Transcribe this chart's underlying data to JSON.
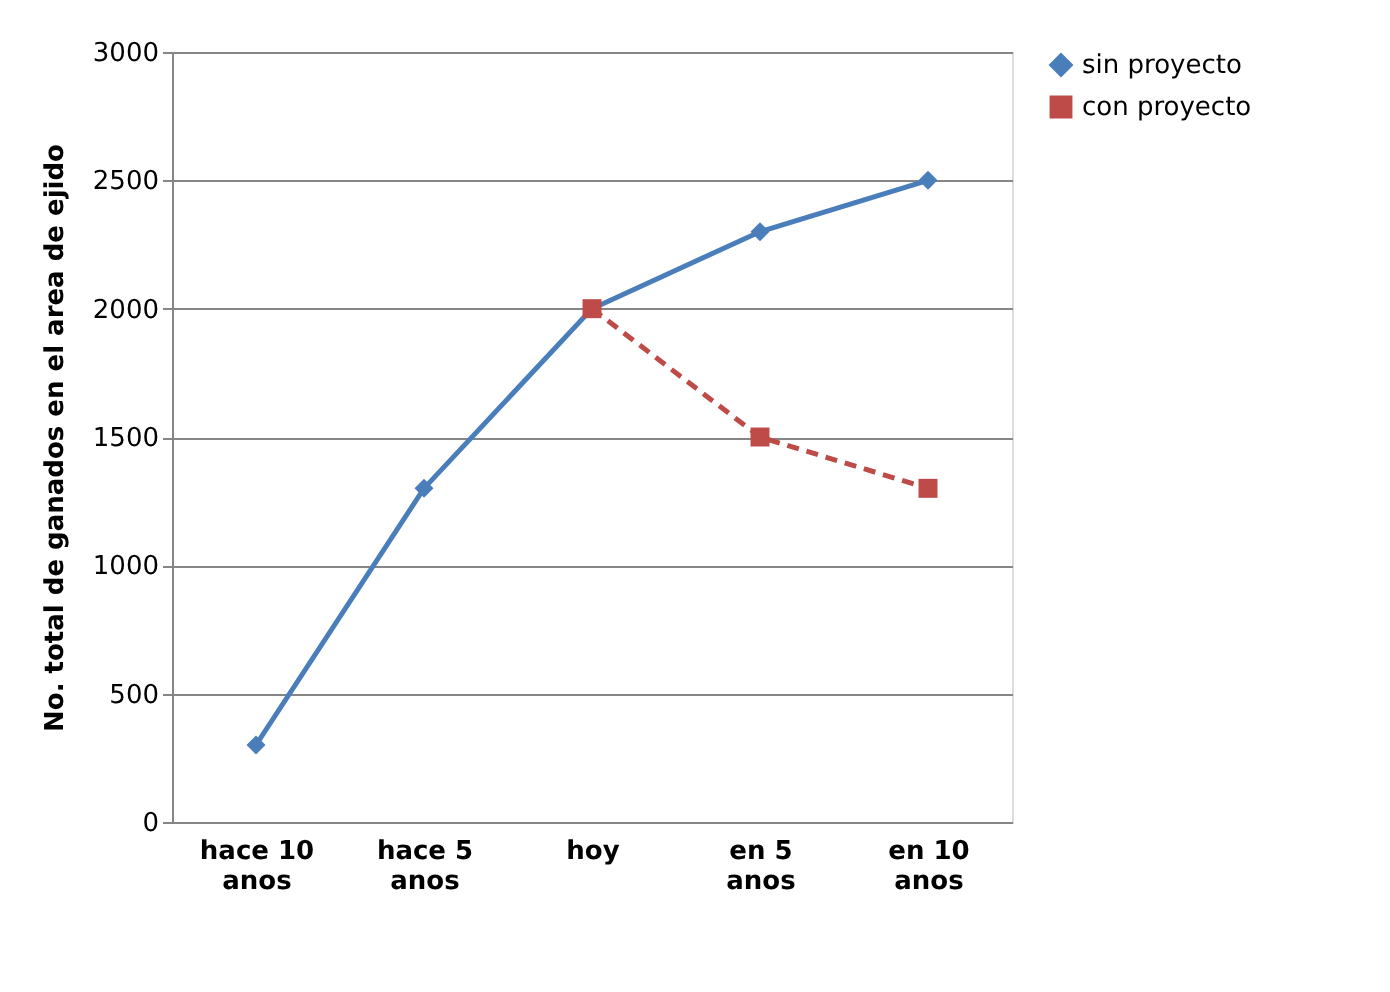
{
  "chart_data": {
    "type": "line",
    "ylabel": "No. total de ganados en el area de ejido",
    "categories": [
      "hace 10 anos",
      "hace 5 anos",
      "hoy",
      "en 5 anos",
      "en 10 anos"
    ],
    "series": [
      {
        "name": "sin proyecto",
        "color": "#4a7ebb",
        "marker": "diamond",
        "line_style": "solid",
        "values": [
          300,
          1300,
          2000,
          2300,
          2500
        ]
      },
      {
        "name": "con proyecto",
        "color": "#be4b48",
        "marker": "square",
        "line_style": "dashed",
        "values": [
          null,
          null,
          2000,
          1500,
          1300
        ]
      }
    ],
    "ylim": [
      0,
      3000
    ],
    "yticks": [
      0,
      500,
      1000,
      1500,
      2000,
      2500,
      3000
    ],
    "grid": "y",
    "legend": "right"
  }
}
